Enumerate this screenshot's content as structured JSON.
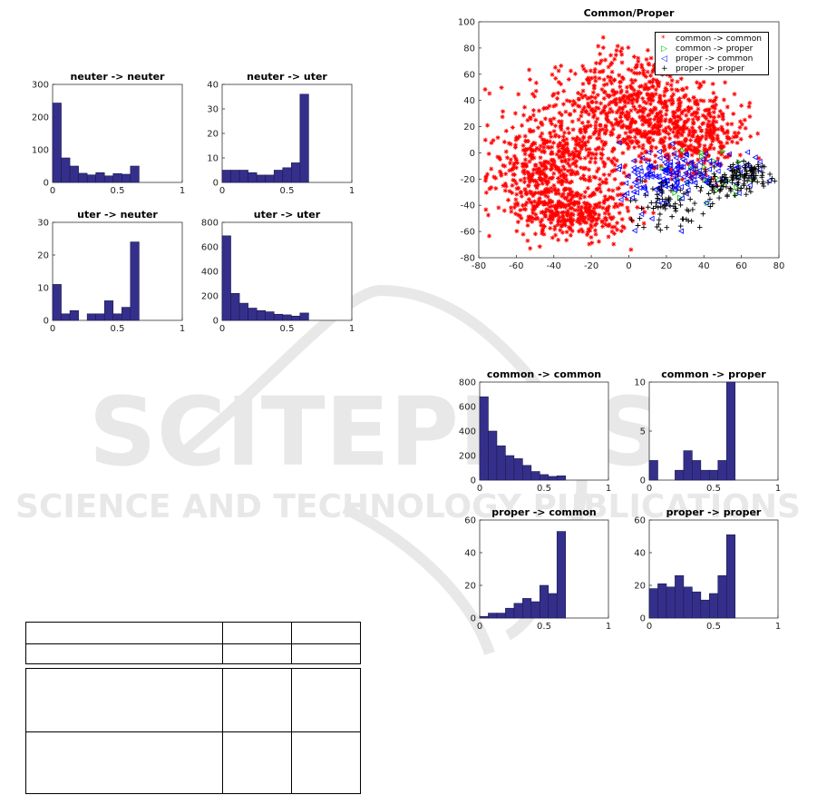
{
  "scatter_panel": {
    "title": "Common/Proper",
    "legend": [
      {
        "label": "common -> common",
        "marker": "*",
        "color": "#ff0000"
      },
      {
        "label": "common -> proper",
        "marker": "triangle-right",
        "color": "#00c000"
      },
      {
        "label": "proper -> common",
        "marker": "triangle-left",
        "color": "#0000ff"
      },
      {
        "label": "proper -> proper",
        "marker": "+",
        "color": "#000000"
      }
    ]
  },
  "watermark": {
    "text_main": "SCITEPRESS",
    "text_sub": "SCIENCE AND TECHNOLOGY PUBLICATIONS",
    "color": "#e8e8e8"
  },
  "colors": {
    "bar_fill": "#352f8c",
    "bar_stroke": "#1a1a4a"
  },
  "chart_data": [
    {
      "id": "neuter-neuter",
      "type": "bar",
      "title": "neuter -> neuter",
      "xlim": [
        0,
        1
      ],
      "ylim": [
        0,
        300
      ],
      "xticks": [
        0,
        0.5,
        1
      ],
      "yticks": [
        0,
        100,
        200,
        300
      ],
      "bin_width": 0.0667,
      "values": [
        243,
        75,
        50,
        28,
        23,
        30,
        20,
        27,
        25,
        50
      ]
    },
    {
      "id": "neuter-uter",
      "type": "bar",
      "title": "neuter -> uter",
      "xlim": [
        0,
        1
      ],
      "ylim": [
        0,
        40
      ],
      "xticks": [
        0,
        0.5,
        1
      ],
      "yticks": [
        0,
        10,
        20,
        30,
        40
      ],
      "bin_width": 0.0667,
      "values": [
        5,
        5,
        5,
        4,
        3,
        3,
        5,
        6,
        8,
        36
      ]
    },
    {
      "id": "uter-neuter",
      "type": "bar",
      "title": "uter -> neuter",
      "xlim": [
        0,
        1
      ],
      "ylim": [
        0,
        30
      ],
      "xticks": [
        0,
        0.5,
        1
      ],
      "yticks": [
        0,
        10,
        20,
        30
      ],
      "bin_width": 0.0667,
      "values": [
        11,
        2,
        3,
        0,
        2,
        2,
        6,
        2,
        4,
        24
      ]
    },
    {
      "id": "uter-uter",
      "type": "bar",
      "title": "uter -> uter",
      "xlim": [
        0,
        1
      ],
      "ylim": [
        0,
        800
      ],
      "xticks": [
        0,
        0.5,
        1
      ],
      "yticks": [
        0,
        200,
        400,
        600,
        800
      ],
      "bin_width": 0.0667,
      "values": [
        690,
        220,
        140,
        100,
        80,
        70,
        50,
        45,
        35,
        60
      ]
    },
    {
      "id": "common-common",
      "type": "bar",
      "title": "common -> common",
      "xlim": [
        0,
        1
      ],
      "ylim": [
        0,
        800
      ],
      "xticks": [
        0,
        0.5,
        1
      ],
      "yticks": [
        0,
        200,
        400,
        600,
        800
      ],
      "bin_width": 0.0667,
      "values": [
        680,
        400,
        280,
        200,
        175,
        120,
        70,
        45,
        30,
        35
      ]
    },
    {
      "id": "common-proper",
      "type": "bar",
      "title": "common -> proper",
      "xlim": [
        0,
        1
      ],
      "ylim": [
        0,
        10
      ],
      "xticks": [
        0,
        0.5,
        1
      ],
      "yticks": [
        0,
        5,
        10
      ],
      "bin_width": 0.0667,
      "values": [
        2,
        0,
        0,
        1,
        3,
        2,
        1,
        1,
        2,
        10
      ]
    },
    {
      "id": "proper-common",
      "type": "bar",
      "title": "proper -> common",
      "xlim": [
        0,
        1
      ],
      "ylim": [
        0,
        60
      ],
      "xticks": [
        0,
        0.5,
        1
      ],
      "yticks": [
        0,
        20,
        40,
        60
      ],
      "bin_width": 0.0667,
      "values": [
        1,
        3,
        3,
        6,
        9,
        12,
        10,
        20,
        15,
        53
      ]
    },
    {
      "id": "proper-proper",
      "type": "bar",
      "title": "proper -> proper",
      "xlim": [
        0,
        1
      ],
      "ylim": [
        0,
        60
      ],
      "xticks": [
        0,
        0.5,
        1
      ],
      "yticks": [
        0,
        20,
        40,
        60
      ],
      "bin_width": 0.0667,
      "values": [
        18,
        21,
        19,
        26,
        19,
        16,
        11,
        15,
        26,
        51
      ]
    },
    {
      "id": "scatter",
      "type": "scatter",
      "title": "Common/Proper",
      "xlim": [
        -80,
        80
      ],
      "ylim": [
        -80,
        100
      ],
      "xticks": [
        -80,
        -60,
        -40,
        -20,
        0,
        20,
        40,
        60,
        80
      ],
      "yticks": [
        -80,
        -60,
        -40,
        -20,
        0,
        20,
        40,
        60,
        80,
        100
      ],
      "series": [
        {
          "name": "common -> common",
          "approx_count": 1800,
          "clusters": [
            {
              "cx": -20,
              "cy": 20,
              "sx": 22,
              "sy": 25
            },
            {
              "cx": -45,
              "cy": -15,
              "sx": 15,
              "sy": 15
            },
            {
              "cx": 5,
              "cy": 40,
              "sx": 18,
              "sy": 20
            },
            {
              "cx": 35,
              "cy": 15,
              "sx": 15,
              "sy": 15
            },
            {
              "cx": -30,
              "cy": -45,
              "sx": 15,
              "sy": 10
            }
          ]
        },
        {
          "name": "common -> proper",
          "approx_count": 25,
          "clusters": [
            {
              "cx": 40,
              "cy": -15,
              "sx": 12,
              "sy": 10
            }
          ]
        },
        {
          "name": "proper -> common",
          "approx_count": 180,
          "clusters": [
            {
              "cx": 15,
              "cy": -20,
              "sx": 10,
              "sy": 15
            },
            {
              "cx": 40,
              "cy": -15,
              "sx": 15,
              "sy": 8
            }
          ]
        },
        {
          "name": "proper -> proper",
          "approx_count": 200,
          "clusters": [
            {
              "cx": 20,
              "cy": -40,
              "sx": 10,
              "sy": 10
            },
            {
              "cx": 50,
              "cy": -25,
              "sx": 10,
              "sy": 6
            },
            {
              "cx": 65,
              "cy": -15,
              "sx": 6,
              "sy": 4
            }
          ]
        }
      ]
    }
  ]
}
